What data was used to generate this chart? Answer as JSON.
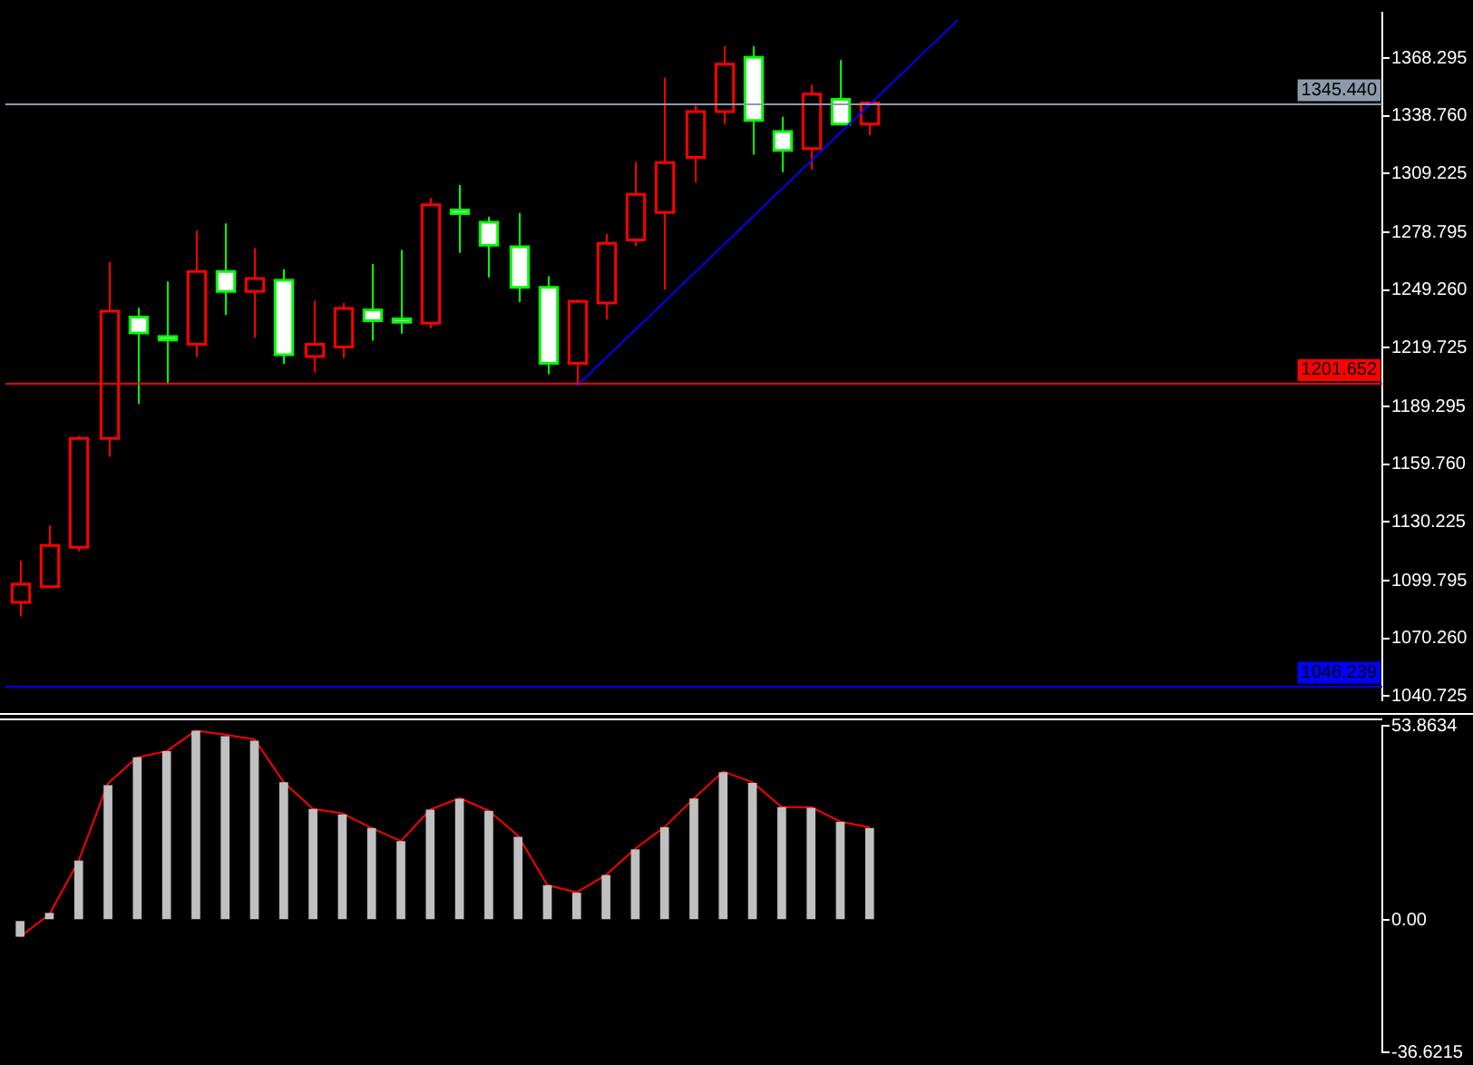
{
  "chart_data": [
    {
      "type": "candlestick",
      "categories": [
        null,
        null,
        null,
        null,
        null,
        null,
        null,
        null,
        null,
        null,
        null,
        null,
        null,
        null,
        null,
        null,
        null,
        null,
        null,
        null,
        null,
        null,
        null,
        null,
        null,
        null,
        null,
        null,
        null,
        null,
        null,
        null,
        null,
        null,
        null,
        null,
        null,
        null,
        null,
        null,
        null,
        null,
        null,
        null,
        null,
        null,
        null
      ],
      "ohlc": [
        [
          1088.8,
          1110.2,
          1081.6,
          1098.2
        ],
        [
          1096.9,
          1128.3,
          1096.9,
          1118.1
        ],
        [
          1117.2,
          1174.3,
          1115.0,
          1173.1
        ],
        [
          1173.1,
          1263.6,
          1163.7,
          1238.4
        ],
        [
          1235.4,
          1240.2,
          1190.8,
          1227.3
        ],
        [
          1225.4,
          1253.7,
          1201.6,
          1223.6
        ],
        [
          1221.5,
          1279.9,
          1214.9,
          1258.8
        ],
        [
          1258.8,
          1283.5,
          1236.5,
          1248.6
        ],
        [
          1248.6,
          1270.8,
          1224.8,
          1255.2
        ],
        [
          1254.3,
          1260.0,
          1211.3,
          1216.1
        ],
        [
          1215.2,
          1243.8,
          1207.0,
          1221.5
        ],
        [
          1220.0,
          1242.6,
          1214.3,
          1239.9
        ],
        [
          1239.0,
          1262.7,
          1223.3,
          1233.6
        ],
        [
          1234.5,
          1269.9,
          1226.9,
          1232.7
        ],
        [
          1232.3,
          1296.7,
          1229.6,
          1293.1
        ],
        [
          1290.4,
          1303.3,
          1268.4,
          1288.6
        ],
        [
          1284.1,
          1287.1,
          1255.8,
          1272.4
        ],
        [
          1271.5,
          1288.9,
          1243.1,
          1250.7
        ],
        [
          1250.7,
          1256.4,
          1206.1,
          1211.6
        ],
        [
          1211.6,
          1244.4,
          1200.2,
          1243.5
        ],
        [
          1242.6,
          1278.1,
          1234.1,
          1273.3
        ],
        [
          1275.1,
          1315.1,
          1272.0,
          1298.5
        ],
        [
          1289.2,
          1358.4,
          1249.5,
          1314.8
        ],
        [
          1317.5,
          1344.2,
          1304.5,
          1341.0
        ],
        [
          1341.0,
          1374.6,
          1334.3,
          1365.3
        ],
        [
          1368.9,
          1374.6,
          1318.9,
          1336.4
        ],
        [
          1330.7,
          1338.3,
          1309.9,
          1321.1
        ],
        [
          1322.0,
          1354.8,
          1311.2,
          1350.0
        ],
        [
          1347.3,
          1367.4,
          1334.6,
          1334.6
        ],
        [
          1334.6,
          1345.5,
          1328.9,
          1345.44
        ],
        null,
        null,
        null,
        null,
        null,
        null,
        null,
        null,
        null,
        null,
        null,
        null,
        null,
        null,
        null,
        null,
        null
      ],
      "colors": [
        "#ff0000",
        "#ff0000",
        "#ff0000",
        "#ff0000",
        "#00ff00",
        "#00ff00",
        "#ff0000",
        "#00ff00",
        "#ff0000",
        "#00ff00",
        "#ff0000",
        "#ff0000",
        "#00ff00",
        "#00ff00",
        "#ff0000",
        "#00ff00",
        "#00ff00",
        "#00ff00",
        "#00ff00",
        "#ff0000",
        "#ff0000",
        "#ff0000",
        "#ff0000",
        "#ff0000",
        "#ff0000",
        "#00ff00",
        "#00ff00",
        "#ff0000",
        "#00ff00",
        "#ff0000",
        null,
        null,
        null,
        null,
        null,
        null,
        null,
        null,
        null,
        null,
        null,
        null,
        null,
        null,
        null,
        null,
        null
      ],
      "series": [
        {
          "type": "line",
          "color": "#0000ff",
          "values": [
            null,
            null,
            null,
            null,
            null,
            null,
            null,
            null,
            null,
            null,
            null,
            null,
            null,
            null,
            null,
            null,
            null,
            null,
            null,
            1200,
            null,
            null,
            null,
            null,
            null,
            null,
            null,
            null,
            null,
            null,
            null,
            null,
            1388,
            null,
            null,
            null,
            null,
            null,
            null,
            null,
            null,
            null,
            null,
            null,
            null,
            null,
            null
          ]
        }
      ],
      "ylim": [
        1038.5,
        1391.8
      ],
      "yticks": [
        1368.295,
        {
          "value": 1338.76,
          "label": "1338.760"
        },
        1309.225,
        1278.795,
        {
          "value": 1249.26,
          "label": "1249.260"
        },
        1219.725,
        1189.295,
        {
          "value": 1159.76,
          "label": "1159.760"
        },
        1130.225,
        1099.795,
        {
          "value": 1070.26,
          "label": "1070.260"
        },
        1040.725
      ],
      "ref_lines": [
        {
          "axis": "y",
          "value": 1345.44,
          "label": "1345.440",
          "color": "#8c9aab"
        },
        {
          "axis": "y",
          "value": 1201.652,
          "label": "1201.652",
          "color": "#ff0000"
        },
        {
          "axis": "y",
          "value": 1046.239,
          "label": "1046.239",
          "color": "#0000ff"
        }
      ],
      "tick_labels": "y",
      "grid": false,
      "legend": false,
      "marker": "none"
    },
    {
      "type": "bar",
      "categories": [
        null,
        null,
        null,
        null,
        null,
        null,
        null,
        null,
        null,
        null,
        null,
        null,
        null,
        null,
        null,
        null,
        null,
        null,
        null,
        null,
        null,
        null,
        null,
        null,
        null,
        null,
        null,
        null,
        null,
        null,
        null,
        null,
        null,
        null,
        null,
        null,
        null,
        null,
        null,
        null,
        null,
        null,
        null,
        null,
        null,
        null,
        null
      ],
      "series": [
        {
          "color": "#c0c0c0",
          "values": [
            -4.6,
            2.0,
            16.5,
            37.4,
            45.1,
            46.8,
            52.5,
            51.0,
            49.7,
            38.2,
            30.8,
            29.3,
            25.5,
            21.9,
            30.6,
            33.6,
            30.3,
            23.1,
            9.7,
            7.6,
            12.5,
            19.6,
            25.8,
            33.7,
            41.0,
            38.0,
            31.3,
            31.1,
            27.2,
            25.5,
            null,
            null,
            null,
            null,
            null,
            null,
            null,
            null,
            null,
            null,
            null,
            null,
            null,
            null,
            null,
            null,
            null
          ]
        },
        {
          "type": "line",
          "color": "#ff0000",
          "values": [
            -4.6,
            1.6,
            16.5,
            37.9,
            45.1,
            46.8,
            52.5,
            51.4,
            50.1,
            38.2,
            30.8,
            29.6,
            25.5,
            21.9,
            30.6,
            33.8,
            30.3,
            23.4,
            9.7,
            7.7,
            12.5,
            19.8,
            25.8,
            33.7,
            41.2,
            38.2,
            31.3,
            31.3,
            27.3,
            25.7,
            null,
            null,
            null,
            null,
            null,
            null,
            null,
            null,
            null,
            null,
            null,
            null,
            null,
            null,
            null,
            null,
            null
          ]
        }
      ],
      "ylim": [
        -36.6215,
        53.8634
      ],
      "yticks": [
        53.8634,
        {
          "value": 0,
          "label": "0.00"
        },
        -36.6215
      ],
      "tick_labels": "y",
      "grid": false,
      "legend": false,
      "marker": "none"
    }
  ]
}
